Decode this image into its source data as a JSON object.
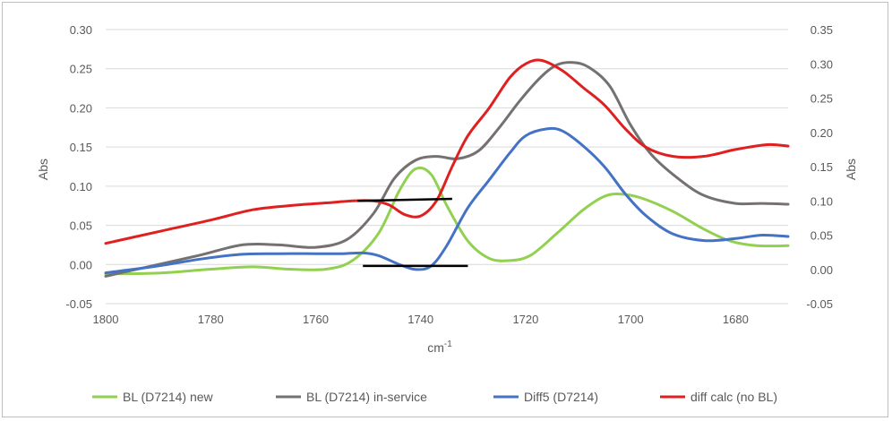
{
  "chart_data": {
    "type": "line",
    "xlabel_main": "cm",
    "xlabel_sup": "-1",
    "ylabel_left": "Abs",
    "ylabel_right": "Abs",
    "x_range": [
      1800,
      1670
    ],
    "x_ticks": [
      "1800",
      "1780",
      "1760",
      "1740",
      "1720",
      "1700",
      "1680"
    ],
    "x_tick_values": [
      1800,
      1780,
      1760,
      1740,
      1720,
      1700,
      1680
    ],
    "y_left_range": [
      -0.05,
      0.3
    ],
    "y_left_ticks": [
      "-0.05",
      "0.00",
      "0.05",
      "0.10",
      "0.15",
      "0.20",
      "0.25",
      "0.30"
    ],
    "y_left_tick_values": [
      -0.05,
      0.0,
      0.05,
      0.1,
      0.15,
      0.2,
      0.25,
      0.3
    ],
    "y_right_range": [
      -0.05,
      0.35
    ],
    "y_right_ticks": [
      "-0.05",
      "0.00",
      "0.05",
      "0.10",
      "0.15",
      "0.20",
      "0.25",
      "0.30",
      "0.35"
    ],
    "y_right_tick_values": [
      -0.05,
      0.0,
      0.05,
      0.1,
      0.15,
      0.2,
      0.25,
      0.3,
      0.35
    ],
    "grid": true,
    "legend_position": "bottom",
    "series": [
      {
        "name": "BL (D7214) new",
        "axis": "left",
        "color": "#92d050",
        "points": [
          [
            1800,
            -0.012
          ],
          [
            1790,
            -0.011
          ],
          [
            1780,
            -0.006
          ],
          [
            1772,
            -0.003
          ],
          [
            1765,
            -0.006
          ],
          [
            1758,
            -0.006
          ],
          [
            1753,
            0.005
          ],
          [
            1748,
            0.04
          ],
          [
            1744,
            0.095
          ],
          [
            1741,
            0.122
          ],
          [
            1738,
            0.115
          ],
          [
            1735,
            0.075
          ],
          [
            1731,
            0.03
          ],
          [
            1727,
            0.008
          ],
          [
            1723,
            0.005
          ],
          [
            1719,
            0.012
          ],
          [
            1714,
            0.04
          ],
          [
            1709,
            0.07
          ],
          [
            1705,
            0.087
          ],
          [
            1702,
            0.09
          ],
          [
            1698,
            0.085
          ],
          [
            1692,
            0.068
          ],
          [
            1686,
            0.045
          ],
          [
            1681,
            0.03
          ],
          [
            1676,
            0.024
          ],
          [
            1670,
            0.024
          ]
        ]
      },
      {
        "name": "BL (D7214) in-service",
        "axis": "left",
        "color": "#767171",
        "points": [
          [
            1800,
            -0.015
          ],
          [
            1790,
            0.0
          ],
          [
            1782,
            0.012
          ],
          [
            1774,
            0.025
          ],
          [
            1767,
            0.025
          ],
          [
            1760,
            0.022
          ],
          [
            1754,
            0.032
          ],
          [
            1749,
            0.065
          ],
          [
            1745,
            0.11
          ],
          [
            1741,
            0.133
          ],
          [
            1737,
            0.138
          ],
          [
            1733,
            0.135
          ],
          [
            1729,
            0.145
          ],
          [
            1725,
            0.175
          ],
          [
            1721,
            0.21
          ],
          [
            1717,
            0.24
          ],
          [
            1714,
            0.255
          ],
          [
            1711,
            0.258
          ],
          [
            1708,
            0.252
          ],
          [
            1704,
            0.228
          ],
          [
            1700,
            0.178
          ],
          [
            1696,
            0.14
          ],
          [
            1691,
            0.11
          ],
          [
            1686,
            0.088
          ],
          [
            1680,
            0.078
          ],
          [
            1675,
            0.078
          ],
          [
            1670,
            0.077
          ]
        ]
      },
      {
        "name": "Diff5 (D7214)",
        "axis": "right",
        "color": "#4472c4",
        "points": [
          [
            1800,
            -0.005
          ],
          [
            1790,
            0.005
          ],
          [
            1782,
            0.015
          ],
          [
            1774,
            0.022
          ],
          [
            1767,
            0.023
          ],
          [
            1760,
            0.023
          ],
          [
            1755,
            0.023
          ],
          [
            1751,
            0.024
          ],
          [
            1748,
            0.02
          ],
          [
            1744,
            0.007
          ],
          [
            1741,
            0.0
          ],
          [
            1738,
            0.005
          ],
          [
            1735,
            0.035
          ],
          [
            1731,
            0.09
          ],
          [
            1727,
            0.13
          ],
          [
            1723,
            0.17
          ],
          [
            1720,
            0.195
          ],
          [
            1716,
            0.205
          ],
          [
            1713,
            0.202
          ],
          [
            1709,
            0.18
          ],
          [
            1705,
            0.15
          ],
          [
            1701,
            0.11
          ],
          [
            1697,
            0.078
          ],
          [
            1692,
            0.052
          ],
          [
            1686,
            0.042
          ],
          [
            1680,
            0.045
          ],
          [
            1675,
            0.05
          ],
          [
            1670,
            0.048
          ]
        ]
      },
      {
        "name": "diff calc (no BL)",
        "axis": "right",
        "color": "#e02020",
        "points": [
          [
            1800,
            0.038
          ],
          [
            1790,
            0.055
          ],
          [
            1780,
            0.072
          ],
          [
            1772,
            0.087
          ],
          [
            1765,
            0.093
          ],
          [
            1758,
            0.097
          ],
          [
            1753,
            0.1
          ],
          [
            1749,
            0.1
          ],
          [
            1746,
            0.094
          ],
          [
            1743,
            0.08
          ],
          [
            1740,
            0.078
          ],
          [
            1737,
            0.1
          ],
          [
            1734,
            0.15
          ],
          [
            1731,
            0.195
          ],
          [
            1727,
            0.235
          ],
          [
            1723,
            0.28
          ],
          [
            1720,
            0.3
          ],
          [
            1717,
            0.305
          ],
          [
            1713,
            0.29
          ],
          [
            1709,
            0.265
          ],
          [
            1705,
            0.24
          ],
          [
            1701,
            0.205
          ],
          [
            1697,
            0.178
          ],
          [
            1692,
            0.165
          ],
          [
            1686,
            0.165
          ],
          [
            1680,
            0.175
          ],
          [
            1674,
            0.182
          ],
          [
            1670,
            0.18
          ]
        ]
      }
    ],
    "annotation_lines": [
      {
        "name": "baseline-upper",
        "color": "#000000",
        "from": [
          1752,
          0.1
        ],
        "to": [
          1734,
          0.103
        ],
        "axis": "right"
      },
      {
        "name": "baseline-lower",
        "color": "#000000",
        "from": [
          1751,
          0.005
        ],
        "to": [
          1731,
          0.005
        ],
        "axis": "right"
      }
    ]
  }
}
